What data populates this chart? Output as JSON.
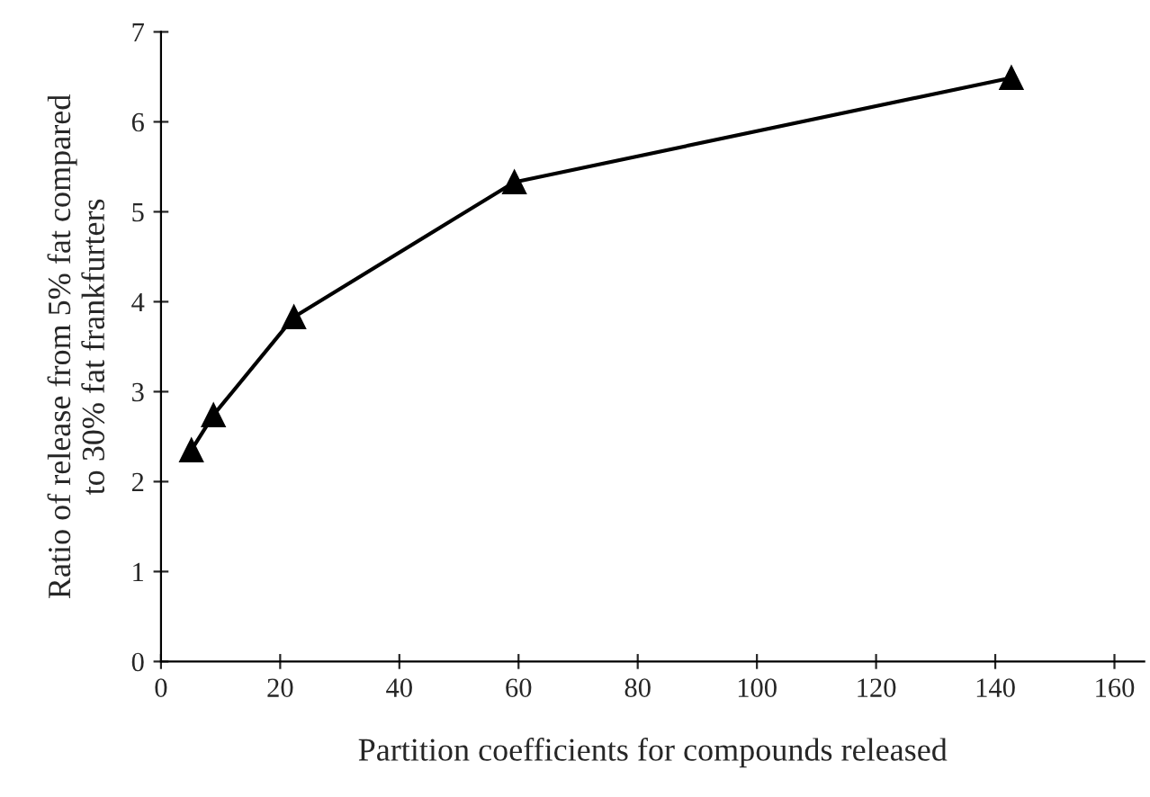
{
  "chart_data": {
    "type": "line",
    "xlabel": "Partition coefficients for compounds released",
    "ylabel": "Ratio of release from 5% fat compared\nto 30% fat frankfurters",
    "x": [
      5.1,
      8.8,
      22.3,
      59.3,
      142.7
    ],
    "series": [
      {
        "color": "#000000",
        "values": [
          2.35,
          2.74,
          3.83,
          5.33,
          6.49
        ]
      }
    ],
    "xlim": [
      0,
      165
    ],
    "xticks": [
      0,
      20,
      40,
      60,
      80,
      100,
      120,
      140,
      160
    ],
    "ylim": [
      0,
      7
    ],
    "yticks": [
      0,
      1,
      2,
      3,
      4,
      5,
      6,
      7
    ],
    "grid": false,
    "legend": false,
    "marker": "triangle",
    "line_style": "solid"
  }
}
